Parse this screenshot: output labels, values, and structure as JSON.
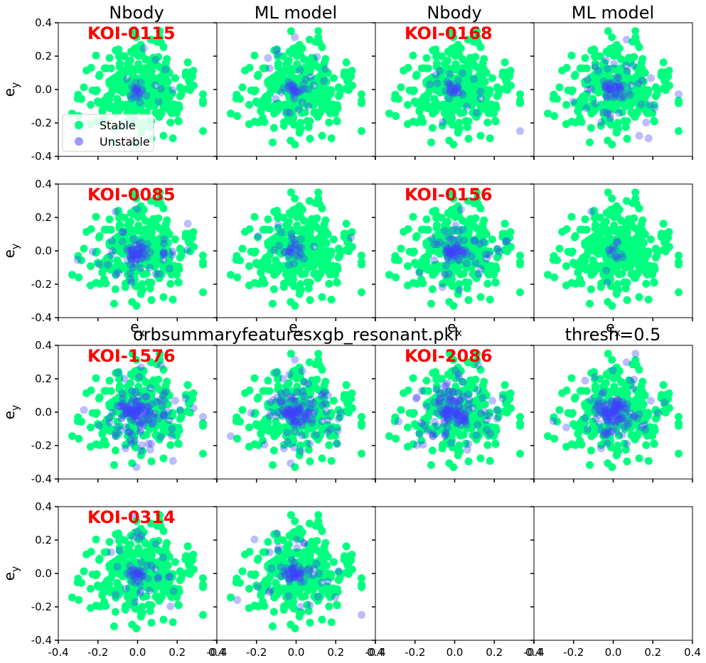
{
  "chart_data": {
    "type": "scatter",
    "grid": "off",
    "xlim": [
      -0.4,
      0.4
    ],
    "ylim": [
      -0.4,
      0.4
    ],
    "xticks": [
      "-0.4",
      "-0.2",
      "0.0",
      "0.2",
      "0.4"
    ],
    "yticks": [
      "0.4",
      "0.2",
      "0.0",
      "-0.2",
      "-0.4"
    ],
    "xlabel": "e_x",
    "ylabel": "e_y",
    "column_titles": [
      "Nbody",
      "ML model",
      "Nbody",
      "ML model"
    ],
    "row3_titles": {
      "left": "orbsummaryfeaturesxgb_resonant.pkl",
      "right": "thresh=0.5"
    },
    "legend": {
      "placement": "lower-left",
      "entries": [
        {
          "label": "Stable",
          "color": "#00ff7f"
        },
        {
          "label": "Unstable",
          "color": "#9999ff"
        }
      ]
    },
    "colors": {
      "stable": "#00ff7f",
      "unstable": "#4040ff",
      "label": "#ff0000"
    },
    "systems": [
      {
        "name": "KOI-0115",
        "nbody_unstable_fraction": 0.12,
        "ml_unstable_fraction": 0.15,
        "unstable_core_spread": 0.02
      },
      {
        "name": "KOI-0168",
        "nbody_unstable_fraction": 0.08,
        "ml_unstable_fraction": 0.35,
        "unstable_core_spread": 0.03
      },
      {
        "name": "KOI-0085",
        "nbody_unstable_fraction": 0.4,
        "ml_unstable_fraction": 0.1,
        "unstable_core_spread": 0.03
      },
      {
        "name": "KOI-0156",
        "nbody_unstable_fraction": 0.35,
        "ml_unstable_fraction": 0.02,
        "unstable_core_spread": 0.03
      },
      {
        "name": "KOI-1576",
        "nbody_unstable_fraction": 0.55,
        "ml_unstable_fraction": 0.6,
        "unstable_core_spread": 0.04
      },
      {
        "name": "KOI-2086",
        "nbody_unstable_fraction": 0.6,
        "ml_unstable_fraction": 0.55,
        "unstable_core_spread": 0.04
      },
      {
        "name": "KOI-0314",
        "nbody_unstable_fraction": 0.2,
        "ml_unstable_fraction": 0.3,
        "unstable_core_spread": 0.025
      }
    ]
  }
}
